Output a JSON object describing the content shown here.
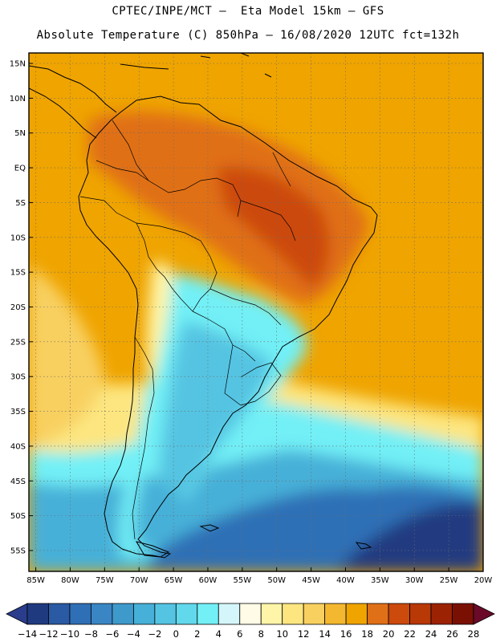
{
  "header": {
    "line1": "CPTEC/INPE/MCT –  Eta Model 15km – GFS",
    "line2": "Absolute Temperature (C) 850hPa – 16/08/2020 12UTC fct=132h"
  },
  "map": {
    "lat_labels": [
      {
        "lat": 15,
        "label": "15N"
      },
      {
        "lat": 10,
        "label": "10N"
      },
      {
        "lat": 5,
        "label": "5N"
      },
      {
        "lat": 0,
        "label": "EQ"
      },
      {
        "lat": -5,
        "label": "5S"
      },
      {
        "lat": -10,
        "label": "10S"
      },
      {
        "lat": -15,
        "label": "15S"
      },
      {
        "lat": -20,
        "label": "20S"
      },
      {
        "lat": -25,
        "label": "25S"
      },
      {
        "lat": -30,
        "label": "30S"
      },
      {
        "lat": -35,
        "label": "35S"
      },
      {
        "lat": -40,
        "label": "40S"
      },
      {
        "lat": -45,
        "label": "45S"
      },
      {
        "lat": -50,
        "label": "50S"
      },
      {
        "lat": -55,
        "label": "55S"
      }
    ],
    "lon_labels": [
      {
        "lon": -85,
        "label": "85W"
      },
      {
        "lon": -80,
        "label": "80W"
      },
      {
        "lon": -75,
        "label": "75W"
      },
      {
        "lon": -70,
        "label": "70W"
      },
      {
        "lon": -65,
        "label": "65W"
      },
      {
        "lon": -60,
        "label": "60W"
      },
      {
        "lon": -55,
        "label": "55W"
      },
      {
        "lon": -50,
        "label": "50W"
      },
      {
        "lon": -45,
        "label": "45W"
      },
      {
        "lon": -40,
        "label": "40W"
      },
      {
        "lon": -35,
        "label": "35W"
      },
      {
        "lon": -30,
        "label": "30W"
      },
      {
        "lon": -25,
        "label": "25W"
      },
      {
        "lon": -20,
        "label": "20W"
      }
    ],
    "lon_range": [
      -86,
      -20
    ],
    "lat_range": [
      -58,
      16.5
    ]
  },
  "colorbar": {
    "labels": [
      "-14",
      "-12",
      "-10",
      "-8",
      "-6",
      "-4",
      "-2",
      "0",
      "2",
      "4",
      "6",
      "8",
      "10",
      "12",
      "14",
      "16",
      "18",
      "20",
      "22",
      "24",
      "26",
      "28"
    ],
    "colors": [
      "#203a80",
      "#2a5aa4",
      "#2f6fb6",
      "#3a86c4",
      "#3f9acc",
      "#46b0d8",
      "#55c4e2",
      "#62d8ec",
      "#72f0f6",
      "#d4f6fb",
      "#fffbe6",
      "#fff5a8",
      "#fde680",
      "#f8d060",
      "#f4b830",
      "#efa400",
      "#e07018",
      "#cc4a0c",
      "#b83806",
      "#9c2204",
      "#7a1004"
    ],
    "under_color": "#2a3c8c",
    "over_color": "#6a0a28"
  }
}
